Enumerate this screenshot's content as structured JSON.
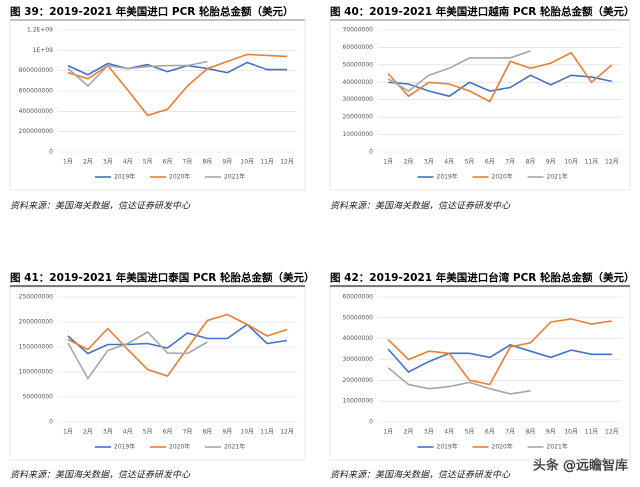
{
  "chart_data": [
    {
      "type": "line",
      "title": "图 39：2019-2021 年美国进口 PCR 轮胎总金额（美元）",
      "categories": [
        "1月",
        "2月",
        "3月",
        "4月",
        "5月",
        "6月",
        "7月",
        "8月",
        "9月",
        "10月",
        "11月",
        "12月"
      ],
      "series": [
        {
          "name": "2019年",
          "color": "#4472c4",
          "values": [
            850000000,
            760000000,
            870000000,
            820000000,
            860000000,
            790000000,
            850000000,
            820000000,
            780000000,
            880000000,
            810000000,
            810000000
          ]
        },
        {
          "name": "2020年",
          "color": "#ed7d31",
          "values": [
            780000000,
            720000000,
            850000000,
            610000000,
            360000000,
            420000000,
            650000000,
            820000000,
            890000000,
            960000000,
            950000000,
            940000000
          ]
        },
        {
          "name": "2021年",
          "color": "#a5a5a5",
          "values": [
            820000000,
            650000000,
            850000000,
            820000000,
            840000000,
            850000000,
            850000000,
            890000000,
            null,
            null,
            null,
            null
          ]
        }
      ],
      "ylim": [
        0,
        1200000000
      ],
      "yticks": [
        0,
        200000000,
        400000000,
        600000000,
        800000000,
        {
          "value": 1000000000,
          "label": "1E+09"
        },
        {
          "value": 1200000000,
          "label": "1.2E+09"
        }
      ],
      "grid": true,
      "legend": "bottom",
      "source": "资料来源：美国海关数据，信达证券研发中心"
    },
    {
      "type": "line",
      "title": "图 40：2019-2021 年美国进口越南 PCR 轮胎总金额（美元）",
      "categories": [
        "1月",
        "2月",
        "3月",
        "4月",
        "5月",
        "6月",
        "7月",
        "8月",
        "9月",
        "10月",
        "11月",
        "12月"
      ],
      "series": [
        {
          "name": "2019年",
          "color": "#4472c4",
          "values": [
            40000000,
            39000000,
            35000000,
            32000000,
            40000000,
            35000000,
            37000000,
            44000000,
            38500000,
            44000000,
            43000000,
            40500000
          ]
        },
        {
          "name": "2020年",
          "color": "#ed7d31",
          "values": [
            45000000,
            32000000,
            40000000,
            39000000,
            35000000,
            29000000,
            52000000,
            48000000,
            51000000,
            57000000,
            40000000,
            50000000
          ]
        },
        {
          "name": "2021年",
          "color": "#a5a5a5",
          "values": [
            42000000,
            35000000,
            44000000,
            48000000,
            54000000,
            54000000,
            54000000,
            58000000,
            null,
            null,
            null,
            null
          ]
        }
      ],
      "ylim": [
        0,
        70000000
      ],
      "yticks": [
        0,
        10000000,
        20000000,
        30000000,
        40000000,
        50000000,
        60000000,
        70000000
      ],
      "grid": true,
      "legend": "bottom",
      "source": "资料来源：美国海关数据，信达证券研发中心"
    },
    {
      "type": "line",
      "title": "图 41：2019-2021 年美国进口泰国 PCR 轮胎总金额（美元）",
      "categories": [
        "1月",
        "2月",
        "3月",
        "4月",
        "5月",
        "6月",
        "7月",
        "8月",
        "9月",
        "10月",
        "11月",
        "12月"
      ],
      "series": [
        {
          "name": "2019年",
          "color": "#4472c4",
          "values": [
            172000000,
            137000000,
            155000000,
            155000000,
            157000000,
            148000000,
            178000000,
            167000000,
            167000000,
            195000000,
            157000000,
            163000000
          ]
        },
        {
          "name": "2020年",
          "color": "#ed7d31",
          "values": [
            165000000,
            145000000,
            187000000,
            145000000,
            105000000,
            92000000,
            148000000,
            203000000,
            215000000,
            195000000,
            172000000,
            185000000
          ]
        },
        {
          "name": "2021年",
          "color": "#a5a5a5",
          "values": [
            158000000,
            87000000,
            143000000,
            157000000,
            180000000,
            138000000,
            137000000,
            160000000,
            null,
            null,
            null,
            null
          ]
        }
      ],
      "ylim": [
        0,
        250000000
      ],
      "yticks": [
        0,
        50000000,
        100000000,
        150000000,
        200000000,
        250000000
      ],
      "grid": true,
      "legend": "bottom",
      "source": "资料来源：美国海关数据，信达证券研发中心"
    },
    {
      "type": "line",
      "title": "图 42：2019-2021 年美国进口台湾 PCR 轮胎总金额（美元）",
      "categories": [
        "1月",
        "2月",
        "3月",
        "4月",
        "5月",
        "6月",
        "7月",
        "8月",
        "9月",
        "10月",
        "11月",
        "12月"
      ],
      "series": [
        {
          "name": "2019年",
          "color": "#4472c4",
          "values": [
            35000000,
            24000000,
            29000000,
            33000000,
            33000000,
            31000000,
            37000000,
            34000000,
            31000000,
            34500000,
            32500000,
            32500000
          ]
        },
        {
          "name": "2020年",
          "color": "#ed7d31",
          "values": [
            39500000,
            30000000,
            34000000,
            33000000,
            20000000,
            18000000,
            36000000,
            38000000,
            48000000,
            49500000,
            47000000,
            48500000
          ]
        },
        {
          "name": "2021年",
          "color": "#a5a5a5",
          "values": [
            26000000,
            18000000,
            16000000,
            17000000,
            19000000,
            16000000,
            13500000,
            15000000,
            null,
            null,
            null,
            null
          ]
        }
      ],
      "ylim": [
        0,
        60000000
      ],
      "yticks": [
        0,
        10000000,
        20000000,
        30000000,
        40000000,
        50000000,
        60000000
      ],
      "grid": true,
      "legend": "bottom",
      "source": "资料来源：美国海关数据，信达证券研发中心"
    }
  ],
  "watermark": "头条 @远瞻智库"
}
